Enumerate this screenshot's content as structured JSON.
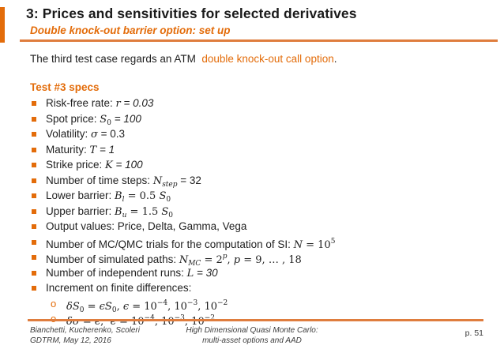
{
  "slide": {
    "title": "3: Prices and sensitivities for selected derivatives",
    "subtitle": "Double knock-out barrier option: set up",
    "intro": [
      {
        "t": "The third test case regards an ATM  "
      },
      {
        "t": "double knock-out call option",
        "s": "o"
      },
      {
        "t": "."
      }
    ],
    "specs_heading": "Test #3 specs",
    "bullets": [
      {
        "level": 1,
        "segs": [
          {
            "t": "Risk-free rate: "
          },
          {
            "t": "r",
            "s": "m"
          },
          {
            "t": " = 0.03",
            "s": "i"
          }
        ]
      },
      {
        "level": 1,
        "segs": [
          {
            "t": "Spot price: "
          },
          {
            "t": "S",
            "s": "m"
          },
          {
            "t": "0",
            "s": "msub"
          },
          {
            "t": " = 100",
            "s": "i"
          }
        ]
      },
      {
        "level": 1,
        "segs": [
          {
            "t": "Volatility: "
          },
          {
            "t": "σ",
            "s": "m"
          },
          {
            "t": " = 0.3"
          }
        ]
      },
      {
        "level": 1,
        "segs": [
          {
            "t": "Maturity: "
          },
          {
            "t": "T",
            "s": "m"
          },
          {
            "t": " = 1",
            "s": "i"
          }
        ]
      },
      {
        "level": 1,
        "segs": [
          {
            "t": "Strike price: "
          },
          {
            "t": "K",
            "s": "m"
          },
          {
            "t": " = 100",
            "s": "i"
          }
        ]
      },
      {
        "level": 1,
        "segs": [
          {
            "t": "Number of time steps: "
          },
          {
            "t": "N",
            "s": "m"
          },
          {
            "t": "step",
            "s": "msubi"
          },
          {
            "t": " = 32"
          }
        ]
      },
      {
        "level": 1,
        "segs": [
          {
            "t": "Lower barrier: "
          },
          {
            "t": "B",
            "s": "m"
          },
          {
            "t": "l",
            "s": "msubi"
          },
          {
            "t": " = 0.5 ",
            "s": "mr"
          },
          {
            "t": "S",
            "s": "m"
          },
          {
            "t": "0",
            "s": "msub"
          }
        ]
      },
      {
        "level": 1,
        "segs": [
          {
            "t": "Upper barrier: "
          },
          {
            "t": "B",
            "s": "m"
          },
          {
            "t": "u",
            "s": "msubi"
          },
          {
            "t": " = 1.5 ",
            "s": "mr"
          },
          {
            "t": "S",
            "s": "m"
          },
          {
            "t": "0",
            "s": "msub"
          }
        ]
      },
      {
        "level": 1,
        "segs": [
          {
            "t": "Output values: Price, Delta, Gamma, Vega"
          }
        ]
      },
      {
        "level": 1,
        "segs": [
          {
            "t": "Number of MC/QMC trials for the computation of SI: "
          },
          {
            "t": "N",
            "s": "m"
          },
          {
            "t": " = 10",
            "s": "mr"
          },
          {
            "t": "5",
            "s": "msup"
          }
        ]
      },
      {
        "level": 1,
        "segs": [
          {
            "t": "Number of simulated paths: "
          },
          {
            "t": "N",
            "s": "m"
          },
          {
            "t": "MC",
            "s": "msubi"
          },
          {
            "t": " = 2",
            "s": "mr"
          },
          {
            "t": "p",
            "s": "msupi"
          },
          {
            "t": ", ",
            "s": "mr"
          },
          {
            "t": "p",
            "s": "m"
          },
          {
            "t": " = 9, … , 18",
            "s": "mr"
          }
        ]
      },
      {
        "level": 1,
        "segs": [
          {
            "t": "Number of independent runs: "
          },
          {
            "t": "L",
            "s": "m"
          },
          {
            "t": " = 30",
            "s": "i"
          }
        ]
      },
      {
        "level": 1,
        "segs": [
          {
            "t": "Increment on finite differences:"
          }
        ]
      },
      {
        "level": 2,
        "segs": [
          {
            "t": "δS",
            "s": "m"
          },
          {
            "t": "0",
            "s": "msub"
          },
          {
            "t": " = ",
            "s": "mr"
          },
          {
            "t": "ϵS",
            "s": "m"
          },
          {
            "t": "0",
            "s": "msub"
          },
          {
            "t": ", ",
            "s": "mr"
          },
          {
            "t": "ϵ",
            "s": "m"
          },
          {
            "t": " = 10",
            "s": "mr"
          },
          {
            "t": "−4",
            "s": "msup"
          },
          {
            "t": ", 10",
            "s": "mr"
          },
          {
            "t": "−3",
            "s": "msup"
          },
          {
            "t": ", 10",
            "s": "mr"
          },
          {
            "t": "−2",
            "s": "msup"
          }
        ]
      },
      {
        "level": 2,
        "segs": [
          {
            "t": "δσ",
            "s": "m"
          },
          {
            "t": " = ",
            "s": "mr"
          },
          {
            "t": "ϵ",
            "s": "m"
          },
          {
            "t": ",  ",
            "s": "mr"
          },
          {
            "t": "ϵ",
            "s": "m"
          },
          {
            "t": " = 10",
            "s": "mr"
          },
          {
            "t": "−4",
            "s": "msup"
          },
          {
            "t": ", 10",
            "s": "mr"
          },
          {
            "t": "−3",
            "s": "msup"
          },
          {
            "t": ", 10",
            "s": "mr"
          },
          {
            "t": "−2",
            "s": "msup"
          }
        ]
      }
    ],
    "sub_bullet_marker": "o",
    "footer": {
      "left_line1": "Bianchetti, Kucherenko, Scoleri",
      "left_line2": "GDTRM, May 12, 2016",
      "center_line1": "High Dimensional Quasi Monte Carlo:",
      "center_line2": "multi-asset options and AAD",
      "page": "p. 51"
    },
    "colors": {
      "accent": "#E36C0A",
      "rule": "#DF7D3E",
      "text": "#1f1f1f"
    }
  }
}
